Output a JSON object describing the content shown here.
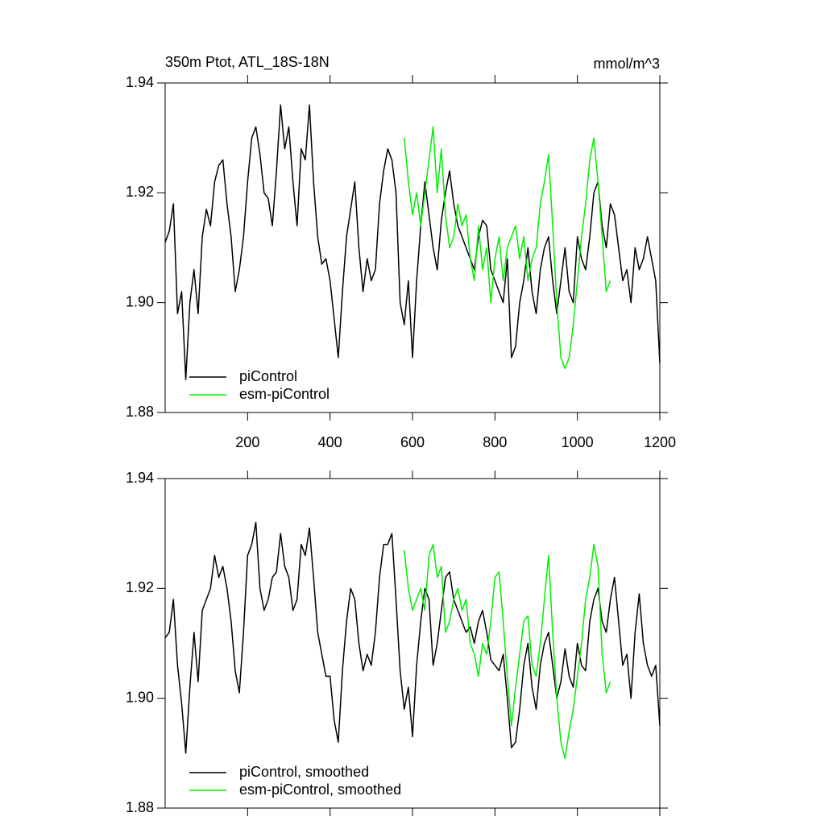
{
  "chart_data": [
    {
      "type": "line",
      "title": "350m Ptot, ATL_18S-18N",
      "units": "mmol/m^3",
      "xlim": [
        0,
        1200
      ],
      "xticks": [
        200,
        400,
        600,
        800,
        1000,
        1200
      ],
      "ylim": [
        1.88,
        1.94
      ],
      "yticks": [
        1.88,
        {
          "value": 1.9,
          "label": "1.90"
        },
        1.92,
        1.94
      ],
      "legend": "lower left",
      "series": [
        {
          "name": "piControl",
          "color": "#000000",
          "x": [
            0,
            10,
            20,
            30,
            40,
            50,
            60,
            70,
            80,
            90,
            100,
            110,
            120,
            130,
            140,
            150,
            160,
            170,
            180,
            190,
            200,
            210,
            220,
            230,
            240,
            250,
            260,
            270,
            280,
            290,
            300,
            310,
            320,
            330,
            340,
            350,
            360,
            370,
            380,
            390,
            400,
            410,
            420,
            430,
            440,
            450,
            460,
            470,
            480,
            490,
            500,
            510,
            520,
            530,
            540,
            550,
            560,
            570,
            580,
            590,
            600,
            610,
            620,
            630,
            640,
            650,
            660,
            670,
            680,
            690,
            700,
            710,
            720,
            730,
            740,
            750,
            760,
            770,
            780,
            790,
            800,
            810,
            820,
            830,
            840,
            850,
            860,
            870,
            880,
            890,
            900,
            910,
            920,
            930,
            940,
            950,
            960,
            970,
            980,
            990,
            1000,
            1010,
            1020,
            1030,
            1040,
            1050,
            1060,
            1070,
            1080,
            1090,
            1100,
            1110,
            1120,
            1130,
            1140,
            1150,
            1160,
            1170,
            1180,
            1190,
            1200
          ],
          "values": [
            1.911,
            1.913,
            1.918,
            1.898,
            1.902,
            1.886,
            1.9,
            1.906,
            1.898,
            1.912,
            1.917,
            1.914,
            1.922,
            1.925,
            1.926,
            1.918,
            1.912,
            1.902,
            1.906,
            1.912,
            1.922,
            1.93,
            1.932,
            1.927,
            1.92,
            1.919,
            1.914,
            1.924,
            1.936,
            1.928,
            1.932,
            1.922,
            1.914,
            1.928,
            1.926,
            1.936,
            1.922,
            1.912,
            1.907,
            1.908,
            1.904,
            1.897,
            1.89,
            1.902,
            1.912,
            1.917,
            1.922,
            1.91,
            1.902,
            1.908,
            1.904,
            1.906,
            1.918,
            1.924,
            1.928,
            1.926,
            1.92,
            1.9,
            1.896,
            1.904,
            1.89,
            1.904,
            1.914,
            1.922,
            1.916,
            1.91,
            1.906,
            1.915,
            1.92,
            1.924,
            1.918,
            1.914,
            1.912,
            1.91,
            1.908,
            1.906,
            1.912,
            1.915,
            1.914,
            1.906,
            1.904,
            1.902,
            1.9,
            1.908,
            1.89,
            1.892,
            1.9,
            1.904,
            1.91,
            1.902,
            1.898,
            1.906,
            1.91,
            1.912,
            1.904,
            1.898,
            1.904,
            1.91,
            1.902,
            1.9,
            1.912,
            1.908,
            1.906,
            1.912,
            1.92,
            1.922,
            1.914,
            1.91,
            1.918,
            1.916,
            1.91,
            1.904,
            1.906,
            1.9,
            1.91,
            1.906,
            1.908,
            1.912,
            1.908,
            1.904,
            1.889
          ]
        },
        {
          "name": "esm-piControl",
          "color": "#00ee00",
          "x": [
            580,
            590,
            600,
            610,
            620,
            630,
            640,
            650,
            660,
            670,
            680,
            690,
            700,
            710,
            720,
            730,
            740,
            750,
            760,
            770,
            780,
            790,
            800,
            810,
            820,
            830,
            840,
            850,
            860,
            870,
            880,
            890,
            900,
            910,
            920,
            930,
            940,
            950,
            960,
            970,
            980,
            990,
            1000,
            1010,
            1020,
            1030,
            1040,
            1050,
            1060,
            1070,
            1080
          ],
          "values": [
            1.93,
            1.922,
            1.916,
            1.92,
            1.914,
            1.92,
            1.926,
            1.932,
            1.92,
            1.928,
            1.916,
            1.91,
            1.912,
            1.918,
            1.914,
            1.916,
            1.908,
            1.904,
            1.914,
            1.906,
            1.91,
            1.9,
            1.908,
            1.912,
            1.904,
            1.91,
            1.912,
            1.914,
            1.908,
            1.912,
            1.904,
            1.908,
            1.91,
            1.918,
            1.922,
            1.927,
            1.914,
            1.9,
            1.89,
            1.888,
            1.89,
            1.896,
            1.904,
            1.912,
            1.918,
            1.926,
            1.93,
            1.922,
            1.912,
            1.902,
            1.904
          ]
        }
      ]
    },
    {
      "type": "line",
      "xlim": [
        0,
        1200
      ],
      "ylim": [
        1.88,
        1.94
      ],
      "yticks": [
        1.88,
        {
          "value": 1.9,
          "label": "1.90"
        },
        1.92,
        1.94
      ],
      "legend": "lower left",
      "series": [
        {
          "name": "piControl, smoothed",
          "color": "#000000",
          "x": [
            0,
            10,
            20,
            30,
            40,
            50,
            60,
            70,
            80,
            90,
            100,
            110,
            120,
            130,
            140,
            150,
            160,
            170,
            180,
            190,
            200,
            210,
            220,
            230,
            240,
            250,
            260,
            270,
            280,
            290,
            300,
            310,
            320,
            330,
            340,
            350,
            360,
            370,
            380,
            390,
            400,
            410,
            420,
            430,
            440,
            450,
            460,
            470,
            480,
            490,
            500,
            510,
            520,
            530,
            540,
            550,
            560,
            570,
            580,
            590,
            600,
            610,
            620,
            630,
            640,
            650,
            660,
            670,
            680,
            690,
            700,
            710,
            720,
            730,
            740,
            750,
            760,
            770,
            780,
            790,
            800,
            810,
            820,
            830,
            840,
            850,
            860,
            870,
            880,
            890,
            900,
            910,
            920,
            930,
            940,
            950,
            960,
            970,
            980,
            990,
            1000,
            1010,
            1020,
            1030,
            1040,
            1050,
            1060,
            1070,
            1080,
            1090,
            1100,
            1110,
            1120,
            1130,
            1140,
            1150,
            1160,
            1170,
            1180,
            1190,
            1200
          ],
          "values": [
            1.911,
            1.912,
            1.918,
            1.906,
            1.899,
            1.89,
            1.902,
            1.912,
            1.903,
            1.916,
            1.918,
            1.92,
            1.926,
            1.922,
            1.924,
            1.92,
            1.914,
            1.905,
            1.901,
            1.912,
            1.926,
            1.928,
            1.932,
            1.92,
            1.916,
            1.918,
            1.922,
            1.923,
            1.93,
            1.924,
            1.922,
            1.916,
            1.918,
            1.928,
            1.926,
            1.931,
            1.922,
            1.912,
            1.908,
            1.904,
            1.904,
            1.896,
            1.892,
            1.905,
            1.914,
            1.92,
            1.918,
            1.91,
            1.905,
            1.908,
            1.906,
            1.912,
            1.922,
            1.928,
            1.928,
            1.93,
            1.918,
            1.905,
            1.898,
            1.902,
            1.893,
            1.906,
            1.914,
            1.92,
            1.918,
            1.906,
            1.91,
            1.916,
            1.922,
            1.923,
            1.918,
            1.916,
            1.914,
            1.912,
            1.913,
            1.91,
            1.914,
            1.916,
            1.912,
            1.907,
            1.906,
            1.905,
            1.908,
            1.9,
            1.891,
            1.892,
            1.898,
            1.906,
            1.91,
            1.902,
            1.898,
            1.906,
            1.91,
            1.912,
            1.906,
            1.9,
            1.903,
            1.909,
            1.904,
            1.902,
            1.91,
            1.906,
            1.905,
            1.914,
            1.918,
            1.92,
            1.914,
            1.912,
            1.918,
            1.922,
            1.914,
            1.906,
            1.908,
            1.9,
            1.912,
            1.919,
            1.91,
            1.906,
            1.904,
            1.906,
            1.895
          ]
        },
        {
          "name": "esm-piControl, smoothed",
          "color": "#00ee00",
          "x": [
            580,
            590,
            600,
            610,
            620,
            630,
            640,
            650,
            660,
            670,
            680,
            690,
            700,
            710,
            720,
            730,
            740,
            750,
            760,
            770,
            780,
            790,
            800,
            810,
            820,
            830,
            840,
            850,
            860,
            870,
            880,
            890,
            900,
            910,
            920,
            930,
            940,
            950,
            960,
            970,
            980,
            990,
            1000,
            1010,
            1020,
            1030,
            1040,
            1050,
            1060,
            1070,
            1080
          ],
          "values": [
            1.927,
            1.92,
            1.916,
            1.918,
            1.92,
            1.916,
            1.926,
            1.928,
            1.922,
            1.924,
            1.912,
            1.914,
            1.918,
            1.92,
            1.916,
            1.918,
            1.91,
            1.908,
            1.904,
            1.91,
            1.908,
            1.914,
            1.922,
            1.923,
            1.914,
            1.904,
            1.895,
            1.902,
            1.908,
            1.914,
            1.915,
            1.906,
            1.904,
            1.91,
            1.918,
            1.926,
            1.912,
            1.9,
            1.892,
            1.889,
            1.894,
            1.898,
            1.904,
            1.91,
            1.918,
            1.922,
            1.928,
            1.924,
            1.908,
            1.901,
            1.903
          ]
        }
      ]
    }
  ]
}
